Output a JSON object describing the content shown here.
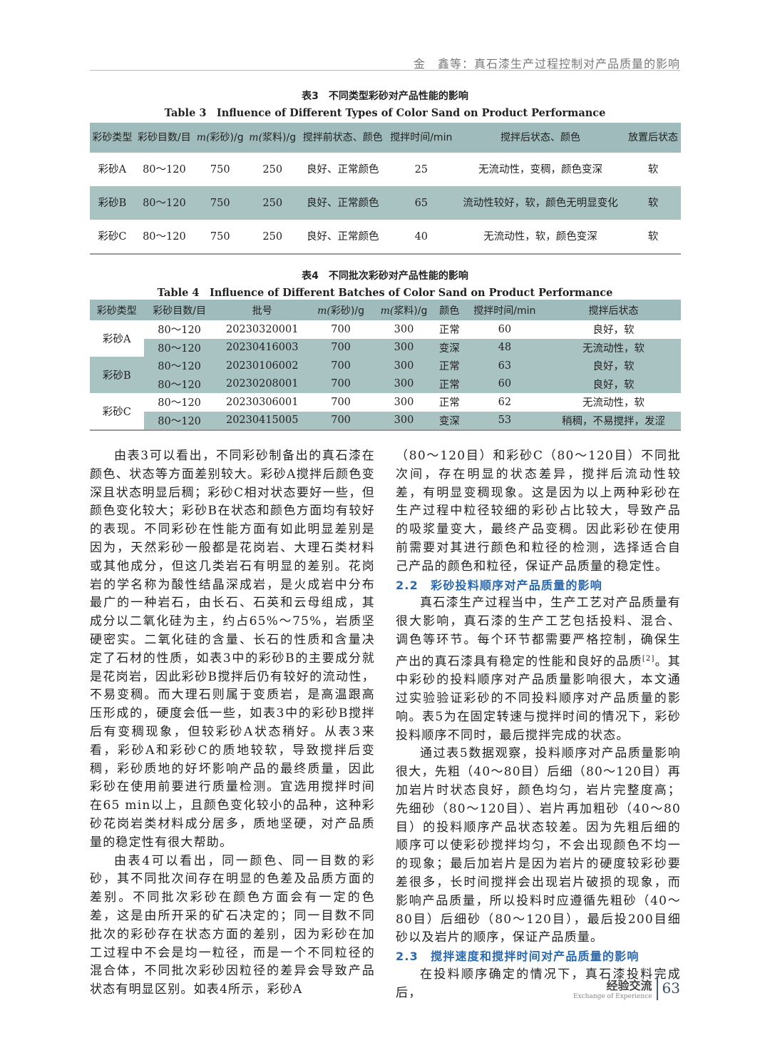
{
  "header": {
    "running_title": "金　鑫等：真石漆生产过程控制对产品质量的影响"
  },
  "table3": {
    "title_zh": "表3　不同类型彩砂对产品性能的影响",
    "title_en": "Table 3　Influence of Different Types of Color Sand on Product Performance",
    "columns": [
      "彩砂类型",
      "彩砂目数/目",
      "m(彩砂)/g",
      "m(浆料)/g",
      "搅拌前状态、颜色",
      "搅拌时间/min",
      "搅拌后状态、颜色",
      "放置后状态"
    ],
    "rows": [
      [
        "彩砂A",
        "80～120",
        "750",
        "250",
        "良好、正常颜色",
        "25",
        "无流动性，变稠，颜色变深",
        "软"
      ],
      [
        "彩砂B",
        "80～120",
        "750",
        "250",
        "良好、正常颜色",
        "65",
        "流动性较好，软，颜色无明显变化",
        "软"
      ],
      [
        "彩砂C",
        "80～120",
        "750",
        "250",
        "良好、正常颜色",
        "40",
        "无流动性，软，颜色变深",
        "软"
      ]
    ]
  },
  "table4": {
    "title_zh": "表4　不同批次彩砂对产品性能的影响",
    "title_en": "Table 4　Influence of Different Batches of Color Sand on Product Performance",
    "columns": [
      "彩砂类型",
      "彩砂目数/目",
      "批号",
      "m(彩砂)/g",
      "m(浆料)/g",
      "颜色",
      "搅拌时间/min",
      "搅拌后状态"
    ],
    "groups": [
      {
        "type": "彩砂A",
        "rows": [
          [
            "80～120",
            "20230320001",
            "700",
            "300",
            "正常",
            "60",
            "良好，软"
          ],
          [
            "80～120",
            "20230416003",
            "700",
            "300",
            "变深",
            "48",
            "无流动性，软"
          ]
        ]
      },
      {
        "type": "彩砂B",
        "rows": [
          [
            "80～120",
            "20230106002",
            "700",
            "300",
            "正常",
            "63",
            "良好，软"
          ],
          [
            "80～120",
            "20230208001",
            "700",
            "300",
            "正常",
            "60",
            "良好，软"
          ]
        ]
      },
      {
        "type": "彩砂C",
        "rows": [
          [
            "80～120",
            "20230306001",
            "700",
            "300",
            "正常",
            "62",
            "无流动性，软"
          ],
          [
            "80～120",
            "20230415005",
            "700",
            "300",
            "变深",
            "53",
            "稍稠，不易搅拌，发涩"
          ]
        ]
      }
    ]
  },
  "body": {
    "p1": "由表3可以看出，不同彩砂制备出的真石漆在颜色、状态等方面差别较大。彩砂A搅拌后颜色变深且状态明显后稠；彩砂C相对状态要好一些，但颜色变化较大；彩砂B在状态和颜色方面均有较好的表现。不同彩砂在性能方面有如此明显差别是因为，天然彩砂一般都是花岗岩、大理石类材料或其他成分，但这几类岩石有明显的差别。花岗岩的学名称为酸性结晶深成岩，是火成岩中分布最广的一种岩石，由长石、石英和云母组成，其成分以二氧化硅为主，约占65%～75%，岩质坚硬密实。二氧化硅的含量、长石的性质和含量决定了石材的性质，如表3中的彩砂B的主要成分就是花岗岩，因此彩砂B搅拌后仍有较好的流动性，不易变稠。而大理石则属于变质岩，是高温跟高压形成的，硬度会低一些，如表3中的彩砂B搅拌后有变稠现象，但较彩砂A状态稍好。从表3来看，彩砂A和彩砂C的质地较软，导致搅拌后变稠，彩砂质地的好坏影响产品的最终质量，因此彩砂在使用前要进行质量检测。宜选用搅拌时间在65 min以上，且颜色变化较小的品种，这种彩砂花岗岩类材料成分居多，质地坚硬，对产品质量的稳定性有很大帮助。",
    "p2": "由表4可以看出，同一颜色、同一目数的彩砂，其不同批次间存在明显的色差及品质方面的差别。不同批次彩砂在颜色方面会有一定的色差，这是由所开采的矿石决定的；同一目数不同批次的彩砂存在状态方面的差别，因为彩砂在加工过程中不会是均一粒径，而是一个不同粒径的混合体，不同批次彩砂因粒径的差异会导致产品状态有明显区别。如表4所示，彩砂A",
    "p3": "（80～120目）和彩砂C（80～120目）不同批次间，存在明显的状态差异，搅拌后流动性较差，有明显变稠现象。这是因为以上两种彩砂在生产过程中粒径较细的彩砂占比较大，导致产品的吸浆量变大，最终产品变稠。因此彩砂在使用前需要对其进行颜色和粒径的检测，选择适合自己产品的颜色和粒径，保证产品质量的稳定性。",
    "h22": "2.2　彩砂投料顺序对产品质量的影响",
    "p4a": "真石漆生产过程当中，生产工艺对产品质量有很大影响，真石漆的生产工艺包括投料、混合、调色等环节。每个环节都需要严格控制，确保生产出的真石漆具有稳定的性能和良好的品质",
    "p4ref": "[2]",
    "p4b": "。其中彩砂的投料顺序对产品质量影响很大，本文通过实验验证彩砂的不同投料顺序对产品质量的影响。表5为在固定转速与搅拌时间的情况下，彩砂投料顺序不同时，最后搅拌完成的状态。",
    "p5": "通过表5数据观察，投料顺序对产品质量影响很大，先粗（40～80目）后细（80～120目）再加岩片时状态良好，颜色均匀，岩片完整度高；先细砂（80～120目）、岩片再加粗砂（40～80目）的投料顺序产品状态较差。因为先粗后细的顺序可以使彩砂搅拌均匀，不会出现颜色不均一的现象；最后加岩片是因为岩片的硬度较彩砂要差很多，长时间搅拌会出现岩片破损的现象，而影响产品质量，所以投料时应遵循先粗砂（40～80目）后细砂（80～120目），最后投200目细砂以及岩片的顺序，保证产品质量。",
    "h23": "2.3　搅拌速度和搅拌时间对产品质量的影响",
    "p6": "在投料顺序确定的情况下，真石漆投料完成后，"
  },
  "footer": {
    "section_zh": "经验交流",
    "section_en": "Exchange of Experience",
    "page": "63"
  },
  "colors": {
    "table_header": "#9fbbbc",
    "table_shade": "#a9c3c3",
    "heading": "#2a68ad"
  }
}
